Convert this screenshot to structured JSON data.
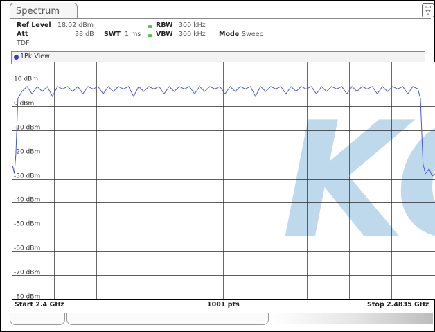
{
  "tab": {
    "label": "Spectrum"
  },
  "settings": {
    "ref_level_label": "Ref Level",
    "ref_level_value": "18.02 dBm",
    "att_label": "Att",
    "att_value": "38 dB",
    "swt_label": "SWT",
    "swt_value": "1 ms",
    "rbw_label": "RBW",
    "rbw_value": "300 kHz",
    "vbw_label": "VBW",
    "vbw_value": "300 kHz",
    "mode_label": "Mode",
    "mode_value": "Sweep",
    "tdf_label": "TDF"
  },
  "view": {
    "label": "1Pk View"
  },
  "footer": {
    "start": "Start 2.4 GHz",
    "points": "1001 pts",
    "stop": "Stop 2.4835 GHz"
  },
  "watermark": {
    "text": "KC"
  },
  "colors": {
    "trace": "#4a55d8",
    "grid": "#2a2a2a",
    "watermark": "#b8d4ea",
    "indicator": "#5bbf5b"
  },
  "chart_data": {
    "type": "line",
    "xlim": [
      2.4,
      2.4835
    ],
    "ylim": [
      -80,
      18
    ],
    "y_ticks": [
      {
        "v": 10,
        "label": "10 dBm"
      },
      {
        "v": 0,
        "label": "0 dBm"
      },
      {
        "v": -10,
        "label": "-10 dBm"
      },
      {
        "v": -20,
        "label": "-20 dBm"
      },
      {
        "v": -30,
        "label": "-30 dBm"
      },
      {
        "v": -40,
        "label": "-40 dBm"
      },
      {
        "v": -50,
        "label": "-50 dBm"
      },
      {
        "v": -60,
        "label": "-60 dBm"
      },
      {
        "v": -70,
        "label": "-70 dBm"
      },
      {
        "v": -80,
        "label": "-80 dBm"
      }
    ],
    "x_divisions": 10,
    "grid": true,
    "series": [
      {
        "points": [
          [
            2.4,
            -26
          ],
          [
            2.4002,
            -25
          ],
          [
            2.4005,
            -28
          ],
          [
            2.4008,
            -20
          ],
          [
            2.4012,
            3
          ],
          [
            2.402,
            6
          ],
          [
            2.403,
            8
          ],
          [
            2.404,
            5
          ],
          [
            2.405,
            8
          ],
          [
            2.406,
            6
          ],
          [
            2.407,
            8
          ],
          [
            2.408,
            4
          ],
          [
            2.409,
            8
          ],
          [
            2.41,
            7
          ],
          [
            2.411,
            8
          ],
          [
            2.412,
            6
          ],
          [
            2.413,
            8
          ],
          [
            2.414,
            5
          ],
          [
            2.415,
            8
          ],
          [
            2.416,
            7
          ],
          [
            2.417,
            8
          ],
          [
            2.418,
            5
          ],
          [
            2.419,
            8
          ],
          [
            2.42,
            6
          ],
          [
            2.421,
            8
          ],
          [
            2.422,
            7
          ],
          [
            2.423,
            8
          ],
          [
            2.424,
            4
          ],
          [
            2.425,
            8
          ],
          [
            2.426,
            6
          ],
          [
            2.427,
            8
          ],
          [
            2.428,
            7
          ],
          [
            2.429,
            8
          ],
          [
            2.43,
            5
          ],
          [
            2.431,
            8
          ],
          [
            2.432,
            6
          ],
          [
            2.433,
            8
          ],
          [
            2.434,
            7
          ],
          [
            2.435,
            8
          ],
          [
            2.436,
            5
          ],
          [
            2.437,
            8
          ],
          [
            2.438,
            6
          ],
          [
            2.439,
            8
          ],
          [
            2.44,
            7
          ],
          [
            2.441,
            8
          ],
          [
            2.442,
            5
          ],
          [
            2.443,
            8
          ],
          [
            2.444,
            6
          ],
          [
            2.445,
            8
          ],
          [
            2.446,
            7
          ],
          [
            2.447,
            8
          ],
          [
            2.448,
            4
          ],
          [
            2.449,
            8
          ],
          [
            2.45,
            6
          ],
          [
            2.451,
            8
          ],
          [
            2.452,
            7
          ],
          [
            2.453,
            8
          ],
          [
            2.454,
            5
          ],
          [
            2.455,
            8
          ],
          [
            2.456,
            6
          ],
          [
            2.457,
            8
          ],
          [
            2.458,
            7
          ],
          [
            2.459,
            8
          ],
          [
            2.46,
            5
          ],
          [
            2.461,
            8
          ],
          [
            2.462,
            6
          ],
          [
            2.463,
            8
          ],
          [
            2.464,
            7
          ],
          [
            2.465,
            8
          ],
          [
            2.466,
            5
          ],
          [
            2.467,
            8
          ],
          [
            2.468,
            6
          ],
          [
            2.469,
            8
          ],
          [
            2.47,
            7
          ],
          [
            2.471,
            8
          ],
          [
            2.472,
            5
          ],
          [
            2.473,
            8
          ],
          [
            2.474,
            6
          ],
          [
            2.475,
            8
          ],
          [
            2.476,
            7
          ],
          [
            2.477,
            8
          ],
          [
            2.478,
            5
          ],
          [
            2.479,
            8
          ],
          [
            2.48,
            7
          ],
          [
            2.4805,
            3
          ],
          [
            2.481,
            -24
          ],
          [
            2.4815,
            -28
          ],
          [
            2.4822,
            -26
          ],
          [
            2.4828,
            -29
          ],
          [
            2.4835,
            -28
          ]
        ]
      }
    ]
  }
}
